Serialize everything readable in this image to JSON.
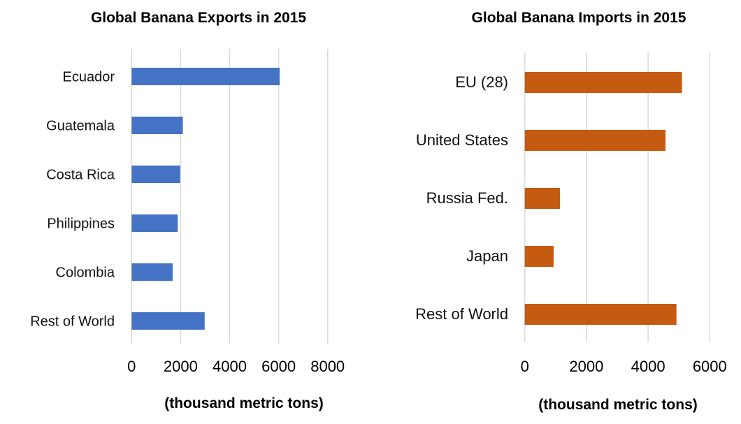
{
  "chart_data": [
    {
      "type": "bar",
      "orientation": "horizontal",
      "title": "Global Banana Exports in 2015",
      "xlabel": "(thousand metric tons)",
      "ylabel": "",
      "categories": [
        "Ecuador",
        "Guatemala",
        "Costa Rica",
        "Philippines",
        "Colombia",
        "Rest of World"
      ],
      "values": [
        6040,
        2090,
        1980,
        1880,
        1675,
        2980
      ],
      "xlim": [
        0,
        8000
      ],
      "xticks": [
        "0",
        "2000",
        "4000",
        "6000",
        "8000"
      ],
      "grid": true,
      "color": "#4472C4"
    },
    {
      "type": "bar",
      "orientation": "horizontal",
      "title": "Global Banana Imports in 2015",
      "xlabel": "(thousand metric tons)",
      "ylabel": "",
      "categories": [
        "EU (28)",
        "United States",
        "Russia Fed.",
        "Japan",
        "Rest of World"
      ],
      "values": [
        5100,
        4565,
        1140,
        935,
        4920
      ],
      "xlim": [
        0,
        6000
      ],
      "xticks": [
        "0",
        "2000",
        "4000",
        "6000"
      ],
      "grid": true,
      "color": "#C55A11"
    }
  ]
}
